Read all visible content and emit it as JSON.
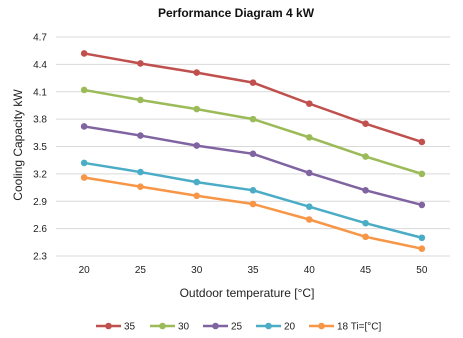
{
  "chart_data": {
    "type": "line",
    "title": "Performance Diagram 4 kW",
    "xlabel": "Outdoor temperature [°C]",
    "ylabel": "Cooling Capacity kW",
    "x": [
      20,
      25,
      30,
      35,
      40,
      45,
      50
    ],
    "x_ticks": [
      "20",
      "25",
      "30",
      "35",
      "40",
      "45",
      "50"
    ],
    "y_ticks": [
      "2.3",
      "2.6",
      "2.9",
      "3.2",
      "3.5",
      "3.8",
      "4.1",
      "4.4",
      "4.7"
    ],
    "xlim": [
      17.5,
      52.5
    ],
    "ylim": [
      2.3,
      4.7
    ],
    "grid": "horizontal",
    "legend_position": "bottom",
    "series": [
      {
        "name": "35",
        "color": "#c0504d",
        "values": [
          4.52,
          4.41,
          4.31,
          4.2,
          3.97,
          3.75,
          3.55
        ]
      },
      {
        "name": "30",
        "color": "#9bbb59",
        "values": [
          4.12,
          4.01,
          3.91,
          3.8,
          3.6,
          3.39,
          3.2
        ]
      },
      {
        "name": "25",
        "color": "#8064a2",
        "values": [
          3.72,
          3.62,
          3.51,
          3.42,
          3.21,
          3.02,
          2.86
        ]
      },
      {
        "name": "20",
        "color": "#4bacc6",
        "values": [
          3.32,
          3.22,
          3.11,
          3.02,
          2.84,
          2.66,
          2.5
        ]
      },
      {
        "name": "18 Ti=[°C]",
        "color": "#f79646",
        "values": [
          3.16,
          3.06,
          2.96,
          2.87,
          2.7,
          2.51,
          2.38
        ]
      }
    ]
  }
}
